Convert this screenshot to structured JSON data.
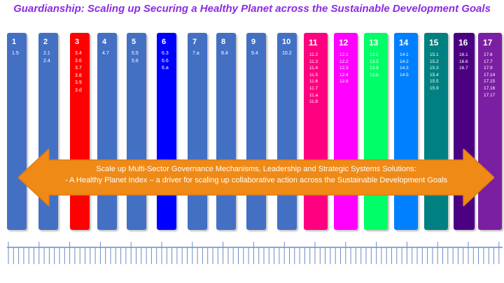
{
  "title": "Guardianship: Scaling up Securing a Healthy Planet across the Sustainable Development Goals",
  "colors": {
    "title": "#8B2BE2",
    "arrow": "#F08A16",
    "arrow_border": "#E07A10",
    "ruler": "#6D8BC7"
  },
  "goals": [
    {
      "number": "1",
      "targets": "1.5",
      "color": "#4470C4"
    },
    {
      "number": "2",
      "targets": "2.1\n2.4",
      "color": "#4470C4"
    },
    {
      "number": "3",
      "targets": "3.4\n3.6\n3.7\n3.8\n3.9\n3.d",
      "color": "#FF0000"
    },
    {
      "number": "4",
      "targets": "4.7",
      "color": "#4470C4"
    },
    {
      "number": "5",
      "targets": "5.5\n5.6",
      "color": "#4470C4"
    },
    {
      "number": "6",
      "targets": "6.3\n6.6\n6.a",
      "color": "#0000FF"
    },
    {
      "number": "7",
      "targets": "7.a",
      "color": "#4470C4"
    },
    {
      "number": "8",
      "targets": "8.4",
      "color": "#4470C4"
    },
    {
      "number": "9",
      "targets": "9.4",
      "color": "#4470C4"
    },
    {
      "number": "10",
      "targets": "10.2",
      "color": "#4470C4"
    },
    {
      "number": "11",
      "targets": "11.2\n11.3\n11.4\n11.5\n11.6\n11.7\n11.a\n11.8",
      "color": "#FF0080"
    },
    {
      "number": "12",
      "targets": "12.1\n12.2\n12.3\n12.4\n12.8",
      "color": "#FF00FF"
    },
    {
      "number": "13",
      "targets": "13.1\n13.2\n13.3\n13.b",
      "color": "#00FF66"
    },
    {
      "number": "14",
      "targets": "14.1\n14.2\n14.3\n14.5",
      "color": "#0080FF"
    },
    {
      "number": "15",
      "targets": "15.1\n15.2\n15.3\n15.4\n15.5\n15.9",
      "color": "#008080"
    },
    {
      "number": "16",
      "targets": "16.1\n16.6\n16.7",
      "color": "#4B0082"
    },
    {
      "number": "17",
      "targets": "17.6\n17.7\n17.9\n17.14\n17.15\n17.16\n17.17",
      "color": "#7B1FA2"
    }
  ],
  "arrow": {
    "line1": "Scale up Multi-Sector Governance Mechanisms, Leadership and Strategic Systems Solutions:",
    "line2": "- A Healthy Planet Index – a driver for scaling up collaborative action across the Sustainable Development Goals"
  }
}
